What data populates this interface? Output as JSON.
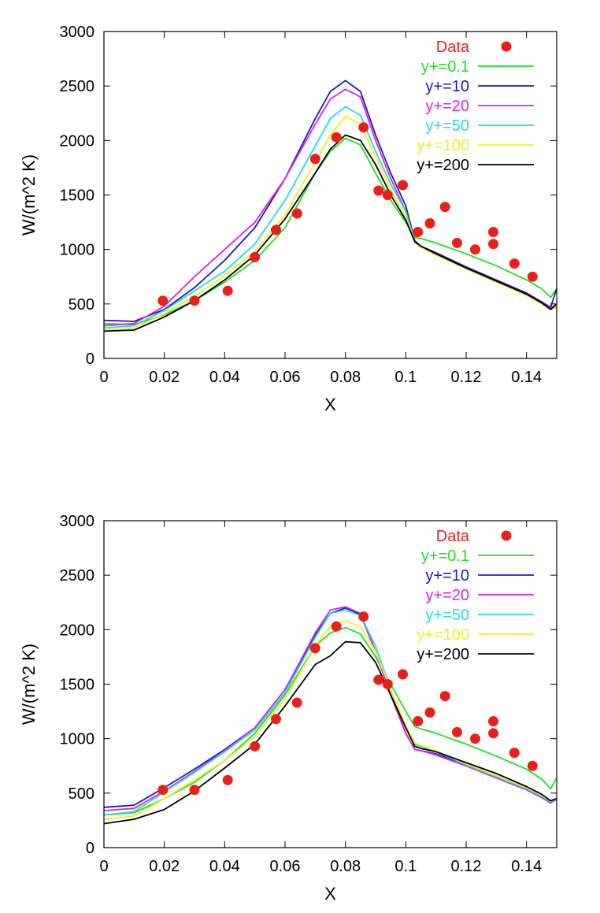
{
  "chart_data": [
    {
      "type": "line",
      "xlabel": "X",
      "ylabel": "W/(m^2 K)",
      "xlim": [
        0,
        0.15
      ],
      "ylim": [
        0,
        3000
      ],
      "xticks": [
        0,
        0.02,
        0.04,
        0.06,
        0.08,
        0.1,
        0.12,
        0.14
      ],
      "xtick_labels": [
        "0",
        "0.02",
        "0.04",
        "0.06",
        "0.08",
        "0.1",
        "0.12",
        "0.14"
      ],
      "yticks": [
        0,
        500,
        1000,
        1500,
        2000,
        2500,
        3000
      ],
      "ytick_labels": [
        "0",
        "500",
        "1000",
        "1500",
        "2000",
        "2500",
        "3000"
      ],
      "grid": false,
      "legend_position": "top-right",
      "scatter": {
        "name": "Data",
        "color": "#e8201a",
        "points": [
          [
            0.0195,
            530
          ],
          [
            0.03,
            530
          ],
          [
            0.041,
            620
          ],
          [
            0.05,
            930
          ],
          [
            0.057,
            1180
          ],
          [
            0.064,
            1330
          ],
          [
            0.07,
            1830
          ],
          [
            0.077,
            2030
          ],
          [
            0.086,
            2120
          ],
          [
            0.091,
            1540
          ],
          [
            0.094,
            1500
          ],
          [
            0.099,
            1590
          ],
          [
            0.104,
            1160
          ],
          [
            0.108,
            1240
          ],
          [
            0.113,
            1390
          ],
          [
            0.117,
            1060
          ],
          [
            0.123,
            1000
          ],
          [
            0.129,
            1160
          ],
          [
            0.129,
            1050
          ],
          [
            0.136,
            870
          ],
          [
            0.142,
            750
          ]
        ]
      },
      "series": [
        {
          "name": "y+=0.1",
          "color": "#22dd22",
          "x": [
            0,
            0.01,
            0.02,
            0.03,
            0.04,
            0.05,
            0.06,
            0.07,
            0.075,
            0.08,
            0.085,
            0.09,
            0.095,
            0.1,
            0.103,
            0.105,
            0.11,
            0.12,
            0.13,
            0.14,
            0.145,
            0.148,
            0.15
          ],
          "y": [
            320,
            310,
            400,
            530,
            700,
            900,
            1200,
            1700,
            1900,
            2020,
            1960,
            1700,
            1450,
            1250,
            1110,
            1100,
            1060,
            960,
            850,
            720,
            640,
            560,
            640
          ]
        },
        {
          "name": "y+=10",
          "color": "#1a1ab8",
          "x": [
            0,
            0.01,
            0.02,
            0.03,
            0.04,
            0.05,
            0.06,
            0.07,
            0.075,
            0.08,
            0.085,
            0.09,
            0.095,
            0.1,
            0.103,
            0.105,
            0.11,
            0.12,
            0.13,
            0.14,
            0.145,
            0.148,
            0.15
          ],
          "y": [
            350,
            340,
            450,
            650,
            900,
            1200,
            1650,
            2200,
            2450,
            2550,
            2450,
            2050,
            1700,
            1400,
            1080,
            1030,
            970,
            840,
            720,
            600,
            520,
            470,
            640
          ]
        },
        {
          "name": "y+=20",
          "color": "#dd22dd",
          "x": [
            0,
            0.01,
            0.02,
            0.03,
            0.04,
            0.05,
            0.06,
            0.07,
            0.075,
            0.08,
            0.085,
            0.09,
            0.095,
            0.1,
            0.103,
            0.105,
            0.11,
            0.12,
            0.13,
            0.14,
            0.145,
            0.148,
            0.15
          ],
          "y": [
            300,
            320,
            480,
            750,
            1000,
            1250,
            1650,
            2150,
            2380,
            2470,
            2400,
            2000,
            1650,
            1350,
            1070,
            1020,
            960,
            830,
            710,
            590,
            510,
            460,
            500
          ]
        },
        {
          "name": "y+=50",
          "color": "#22dddd",
          "x": [
            0,
            0.01,
            0.02,
            0.03,
            0.04,
            0.05,
            0.06,
            0.07,
            0.075,
            0.08,
            0.085,
            0.09,
            0.095,
            0.1,
            0.103,
            0.105,
            0.11,
            0.12,
            0.13,
            0.14,
            0.145,
            0.148,
            0.15
          ],
          "y": [
            280,
            300,
            440,
            620,
            800,
            1050,
            1450,
            1950,
            2200,
            2310,
            2230,
            1900,
            1600,
            1350,
            1070,
            1020,
            950,
            820,
            700,
            580,
            500,
            450,
            470
          ]
        },
        {
          "name": "y+=100",
          "color": "#f0f020",
          "x": [
            0,
            0.01,
            0.02,
            0.03,
            0.04,
            0.05,
            0.06,
            0.07,
            0.075,
            0.08,
            0.085,
            0.09,
            0.095,
            0.1,
            0.103,
            0.105,
            0.11,
            0.12,
            0.13,
            0.14,
            0.145,
            0.148,
            0.15
          ],
          "y": [
            260,
            280,
            410,
            570,
            760,
            980,
            1320,
            1800,
            2050,
            2220,
            2150,
            1850,
            1550,
            1300,
            1070,
            1020,
            950,
            820,
            700,
            580,
            500,
            450,
            460
          ]
        },
        {
          "name": "y+=200",
          "color": "#000000",
          "x": [
            0,
            0.01,
            0.02,
            0.03,
            0.04,
            0.05,
            0.06,
            0.07,
            0.075,
            0.08,
            0.085,
            0.09,
            0.095,
            0.1,
            0.103,
            0.105,
            0.11,
            0.12,
            0.13,
            0.14,
            0.145,
            0.148,
            0.15
          ],
          "y": [
            250,
            260,
            380,
            530,
            720,
            950,
            1280,
            1700,
            1920,
            2050,
            2000,
            1780,
            1500,
            1270,
            1070,
            1030,
            960,
            830,
            710,
            590,
            510,
            450,
            500
          ]
        }
      ]
    },
    {
      "type": "line",
      "xlabel": "X",
      "ylabel": "W/(m^2 K)",
      "xlim": [
        0,
        0.15
      ],
      "ylim": [
        0,
        3000
      ],
      "xticks": [
        0,
        0.02,
        0.04,
        0.06,
        0.08,
        0.1,
        0.12,
        0.14
      ],
      "xtick_labels": [
        "0",
        "0.02",
        "0.04",
        "0.06",
        "0.08",
        "0.1",
        "0.12",
        "0.14"
      ],
      "yticks": [
        0,
        500,
        1000,
        1500,
        2000,
        2500,
        3000
      ],
      "ytick_labels": [
        "0",
        "500",
        "1000",
        "1500",
        "2000",
        "2500",
        "3000"
      ],
      "grid": false,
      "legend_position": "top-right",
      "scatter": {
        "name": "Data",
        "color": "#e8201a",
        "points": [
          [
            0.0195,
            530
          ],
          [
            0.03,
            530
          ],
          [
            0.041,
            620
          ],
          [
            0.05,
            930
          ],
          [
            0.057,
            1180
          ],
          [
            0.064,
            1330
          ],
          [
            0.07,
            1830
          ],
          [
            0.077,
            2030
          ],
          [
            0.086,
            2120
          ],
          [
            0.091,
            1540
          ],
          [
            0.094,
            1500
          ],
          [
            0.099,
            1590
          ],
          [
            0.104,
            1160
          ],
          [
            0.108,
            1240
          ],
          [
            0.113,
            1390
          ],
          [
            0.117,
            1060
          ],
          [
            0.123,
            1000
          ],
          [
            0.129,
            1160
          ],
          [
            0.129,
            1050
          ],
          [
            0.136,
            870
          ],
          [
            0.142,
            750
          ]
        ]
      },
      "series": [
        {
          "name": "y+=0.1",
          "color": "#22dd22",
          "x": [
            0,
            0.01,
            0.02,
            0.03,
            0.04,
            0.05,
            0.06,
            0.07,
            0.075,
            0.08,
            0.085,
            0.09,
            0.095,
            0.1,
            0.103,
            0.105,
            0.11,
            0.12,
            0.13,
            0.14,
            0.145,
            0.148,
            0.15
          ],
          "y": [
            300,
            320,
            450,
            600,
            800,
            1050,
            1400,
            1850,
            1970,
            2020,
            1960,
            1750,
            1500,
            1250,
            1110,
            1090,
            1050,
            950,
            840,
            720,
            630,
            540,
            640
          ]
        },
        {
          "name": "y+=10",
          "color": "#1a1ab8",
          "x": [
            0,
            0.01,
            0.02,
            0.03,
            0.04,
            0.05,
            0.06,
            0.07,
            0.075,
            0.08,
            0.085,
            0.09,
            0.095,
            0.1,
            0.103,
            0.105,
            0.11,
            0.12,
            0.13,
            0.14,
            0.145,
            0.148,
            0.15
          ],
          "y": [
            370,
            390,
            550,
            720,
            900,
            1100,
            1450,
            1950,
            2150,
            2200,
            2140,
            1800,
            1400,
            1050,
            900,
            890,
            860,
            760,
            660,
            540,
            470,
            420,
            450
          ]
        },
        {
          "name": "y+=20",
          "color": "#dd22dd",
          "x": [
            0,
            0.01,
            0.02,
            0.03,
            0.04,
            0.05,
            0.06,
            0.07,
            0.075,
            0.08,
            0.085,
            0.09,
            0.095,
            0.1,
            0.103,
            0.105,
            0.11,
            0.12,
            0.13,
            0.14,
            0.145,
            0.148,
            0.15
          ],
          "y": [
            340,
            360,
            520,
            700,
            890,
            1100,
            1450,
            1970,
            2180,
            2210,
            2150,
            1800,
            1400,
            1050,
            900,
            890,
            850,
            750,
            640,
            530,
            460,
            410,
            440
          ]
        },
        {
          "name": "y+=50",
          "color": "#22dddd",
          "x": [
            0,
            0.01,
            0.02,
            0.03,
            0.04,
            0.05,
            0.06,
            0.07,
            0.075,
            0.08,
            0.085,
            0.09,
            0.095,
            0.1,
            0.103,
            0.105,
            0.11,
            0.12,
            0.13,
            0.14,
            0.145,
            0.148,
            0.15
          ],
          "y": [
            300,
            330,
            510,
            690,
            880,
            1080,
            1420,
            1930,
            2150,
            2180,
            2130,
            1850,
            1450,
            1100,
            950,
            930,
            880,
            760,
            650,
            540,
            470,
            420,
            440
          ]
        },
        {
          "name": "y+=100",
          "color": "#f0f020",
          "x": [
            0,
            0.01,
            0.02,
            0.03,
            0.04,
            0.05,
            0.06,
            0.07,
            0.075,
            0.08,
            0.085,
            0.09,
            0.095,
            0.1,
            0.103,
            0.105,
            0.11,
            0.12,
            0.13,
            0.14,
            0.145,
            0.148,
            0.15
          ],
          "y": [
            260,
            290,
            450,
            620,
            800,
            1020,
            1360,
            1850,
            2030,
            2080,
            2030,
            1800,
            1450,
            1120,
            960,
            940,
            890,
            770,
            660,
            550,
            480,
            430,
            450
          ]
        },
        {
          "name": "y+=200",
          "color": "#000000",
          "x": [
            0,
            0.01,
            0.02,
            0.03,
            0.04,
            0.05,
            0.06,
            0.07,
            0.075,
            0.08,
            0.085,
            0.09,
            0.095,
            0.1,
            0.103,
            0.105,
            0.11,
            0.12,
            0.13,
            0.14,
            0.145,
            0.148,
            0.15
          ],
          "y": [
            220,
            260,
            350,
            520,
            730,
            950,
            1300,
            1680,
            1760,
            1890,
            1880,
            1700,
            1400,
            1100,
            930,
            910,
            880,
            780,
            680,
            560,
            490,
            430,
            450
          ]
        }
      ]
    }
  ]
}
